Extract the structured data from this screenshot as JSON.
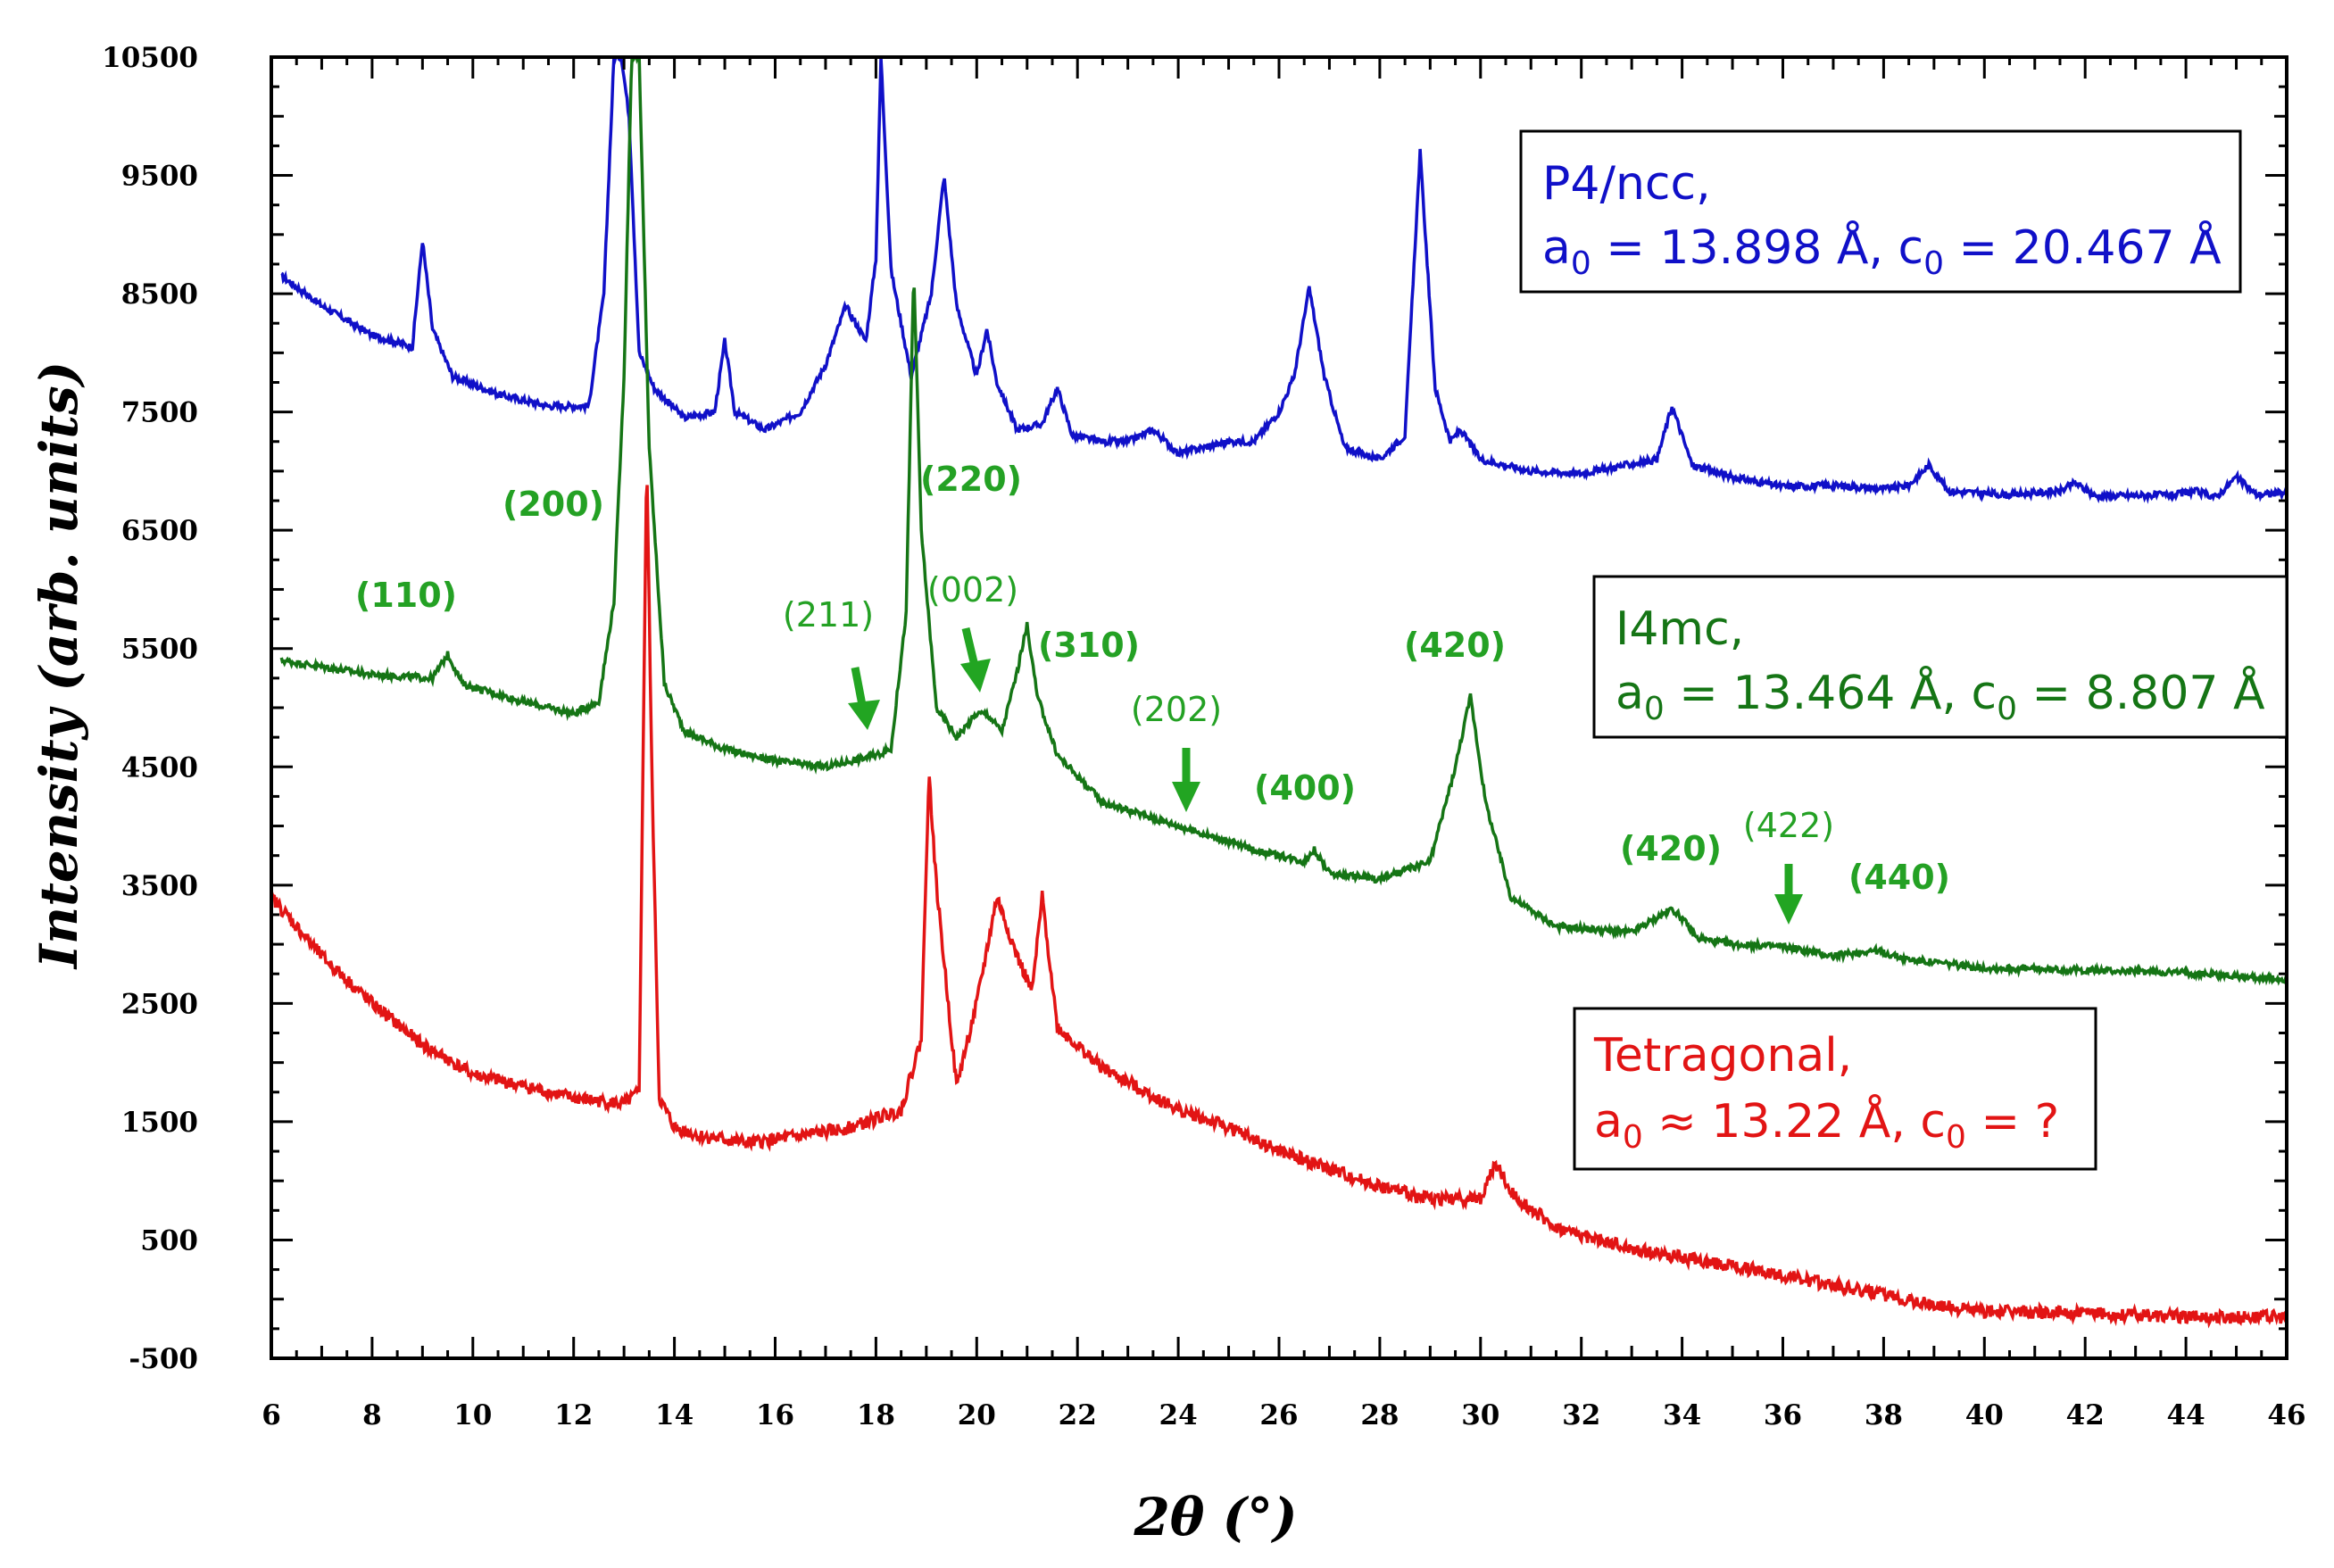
{
  "chart_data": {
    "type": "line",
    "title": "",
    "xlabel": "2θ (°)",
    "ylabel": "Intensity (arb. units)",
    "xlim": [
      6,
      46
    ],
    "ylim": [
      -500,
      10500
    ],
    "x_ticks": [
      "6",
      "8",
      "10",
      "12",
      "14",
      "16",
      "18",
      "20",
      "22",
      "24",
      "26",
      "28",
      "30",
      "32",
      "34",
      "36",
      "38",
      "40",
      "42",
      "44",
      "46"
    ],
    "y_ticks": [
      "-500",
      "500",
      "1500",
      "2500",
      "3500",
      "4500",
      "5500",
      "6500",
      "7500",
      "8500",
      "9500",
      "10500"
    ],
    "series": [
      {
        "name": "P4/ncc",
        "color": "#1010c8",
        "x": [
          6.2,
          7.0,
          8.0,
          8.8,
          9.0,
          9.2,
          9.6,
          10.5,
          11.5,
          12.3,
          12.6,
          12.8,
          12.95,
          13.1,
          13.3,
          13.6,
          14.2,
          14.8,
          15.0,
          15.2,
          15.8,
          16.5,
          17.0,
          17.4,
          17.8,
          18.0,
          18.1,
          18.3,
          18.7,
          19.1,
          19.35,
          19.6,
          20.0,
          20.2,
          20.4,
          20.8,
          21.3,
          21.6,
          21.9,
          22.5,
          23.0,
          23.5,
          24.0,
          24.5,
          25.0,
          25.5,
          26.0,
          26.3,
          26.6,
          26.9,
          27.3,
          28.0,
          28.5,
          28.8,
          29.1,
          29.4,
          29.6,
          30.0,
          31.0,
          32.0,
          33.5,
          33.8,
          34.2,
          35.0,
          36.0,
          37.0,
          38.0,
          38.5,
          38.9,
          39.3,
          40.5,
          41.5,
          41.8,
          42.2,
          43.8,
          44.2,
          44.6,
          45.0,
          45.4,
          46.0
        ],
        "values": [
          8650,
          8400,
          8150,
          8050,
          8950,
          8200,
          7800,
          7650,
          7550,
          7550,
          8500,
          10500,
          10500,
          10000,
          8000,
          7700,
          7450,
          7500,
          8100,
          7500,
          7350,
          7500,
          7900,
          8400,
          8100,
          8800,
          10500,
          8700,
          7800,
          8500,
          9500,
          8400,
          7800,
          8200,
          7750,
          7350,
          7400,
          7700,
          7300,
          7250,
          7250,
          7350,
          7150,
          7200,
          7250,
          7250,
          7500,
          7800,
          8550,
          7800,
          7200,
          7100,
          7300,
          9700,
          7700,
          7250,
          7350,
          7100,
          7000,
          6980,
          7100,
          7550,
          7050,
          6950,
          6870,
          6880,
          6850,
          6880,
          7050,
          6830,
          6800,
          6830,
          6900,
          6790,
          6800,
          6830,
          6780,
          6950,
          6800,
          6820
        ]
      },
      {
        "name": "I4mc",
        "color": "#157515",
        "x": [
          6.2,
          8.0,
          9.2,
          9.5,
          9.8,
          11.0,
          12.0,
          12.5,
          12.8,
          13.0,
          13.15,
          13.3,
          13.5,
          13.8,
          14.2,
          15.0,
          16.0,
          17.0,
          18.0,
          18.3,
          18.6,
          18.75,
          18.9,
          19.2,
          19.6,
          20.0,
          20.2,
          20.5,
          20.8,
          21.0,
          21.2,
          21.6,
          22.5,
          24.0,
          25.5,
          26.5,
          26.7,
          27.0,
          28.0,
          29.0,
          29.5,
          29.8,
          30.1,
          30.6,
          31.5,
          33.0,
          33.8,
          34.0,
          34.3,
          35.0,
          36.0,
          37.0,
          37.8,
          38.5,
          40.0,
          42.0,
          44.0,
          46.0
        ],
        "values": [
          5400,
          5280,
          5250,
          5450,
          5200,
          5050,
          4950,
          5050,
          5900,
          7800,
          10500,
          10500,
          7200,
          5200,
          4800,
          4650,
          4550,
          4500,
          4600,
          4650,
          5800,
          8700,
          6500,
          5000,
          4750,
          4950,
          4950,
          4800,
          5300,
          5700,
          5100,
          4600,
          4200,
          4000,
          3800,
          3700,
          3800,
          3600,
          3550,
          3700,
          4500,
          5100,
          4200,
          3400,
          3150,
          3100,
          3300,
          3220,
          3050,
          3000,
          2980,
          2900,
          2950,
          2870,
          2800,
          2780,
          2760,
          2700
        ]
      },
      {
        "name": "Tetragonal",
        "color": "#e21414",
        "x": [
          6.0,
          7.0,
          8.0,
          9.0,
          10.0,
          11.0,
          12.0,
          13.0,
          13.3,
          13.45,
          13.55,
          13.7,
          14.0,
          14.5,
          15.5,
          16.5,
          17.5,
          18.5,
          18.9,
          19.05,
          19.2,
          19.6,
          20.0,
          20.4,
          20.8,
          21.1,
          21.3,
          21.6,
          22.5,
          24.0,
          25.0,
          26.0,
          27.0,
          28.0,
          29.0,
          30.0,
          30.3,
          30.6,
          31.5,
          33.0,
          35.0,
          37.0,
          39.0,
          40.0,
          42.0,
          44.0,
          46.0
        ],
        "values": [
          3400,
          2900,
          2500,
          2150,
          1900,
          1800,
          1700,
          1650,
          1750,
          7150,
          4500,
          1700,
          1450,
          1380,
          1320,
          1380,
          1450,
          1600,
          2200,
          4450,
          3500,
          1800,
          2500,
          3400,
          2900,
          2600,
          3400,
          2300,
          1950,
          1600,
          1450,
          1250,
          1100,
          950,
          850,
          850,
          1150,
          900,
          600,
          420,
          280,
          120,
          -50,
          -100,
          -120,
          -150,
          -150
        ]
      }
    ],
    "annotations": {
      "p4ncc_line1": "P4/ncc,",
      "p4ncc_line2_pre": "a",
      "p4ncc_line2_sub1": "0",
      "p4ncc_line2_mid": " = 13.898 Å, c",
      "p4ncc_line2_sub2": "0",
      "p4ncc_line2_post": " = 20.467 Å",
      "i4mc_line1": "I4mc,",
      "i4mc_line2_pre": "a",
      "i4mc_line2_sub1": "0",
      "i4mc_line2_mid": " = 13.464 Å, c",
      "i4mc_line2_sub2": "0",
      "i4mc_line2_post": " = 8.807 Å",
      "tet_line1": "Tetragonal,",
      "tet_line2_pre": "a",
      "tet_line2_sub1": "0",
      "tet_line2_mid": " ≈ 13.22 Å, c",
      "tet_line2_sub2": "0",
      "tet_line2_post": " = ?",
      "hkl": {
        "h110": "(110)",
        "h200": "(200)",
        "h220": "(220)",
        "h211": "(211)",
        "h002": "(002)",
        "h310": "(310)",
        "h202": "(202)",
        "h400": "(400)",
        "h420a": "(420)",
        "h420b": "(420)",
        "h422": "(422)",
        "h440": "(440)"
      }
    }
  }
}
